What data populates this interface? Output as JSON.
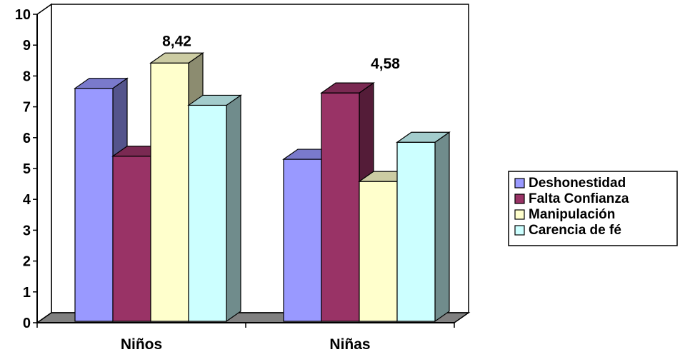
{
  "chart_data": {
    "type": "bar",
    "categories": [
      "Niños",
      "Niñas"
    ],
    "series": [
      {
        "name": "Deshonestidad",
        "values": [
          7.6,
          5.3
        ],
        "color": "#9999ff"
      },
      {
        "name": "Falta Confianza",
        "values": [
          5.4,
          7.45
        ],
        "color": "#993366"
      },
      {
        "name": "Manipulación",
        "values": [
          8.42,
          4.58
        ],
        "color": "#ffffcc"
      },
      {
        "name": "Carencia de fé",
        "values": [
          7.05,
          5.85
        ],
        "color": "#ccffff"
      }
    ],
    "data_labels": [
      {
        "text": "8,42",
        "series": 2,
        "category": 0
      },
      {
        "text": "4,58",
        "series": 2,
        "category": 1
      }
    ],
    "ylim": [
      0,
      10
    ],
    "yticks": [
      "0",
      "1",
      "2",
      "3",
      "4",
      "5",
      "6",
      "7",
      "8",
      "9",
      "10"
    ],
    "grid": false,
    "legend_position": "right",
    "style_3d": true,
    "title": "",
    "xlabel": "",
    "ylabel": ""
  }
}
